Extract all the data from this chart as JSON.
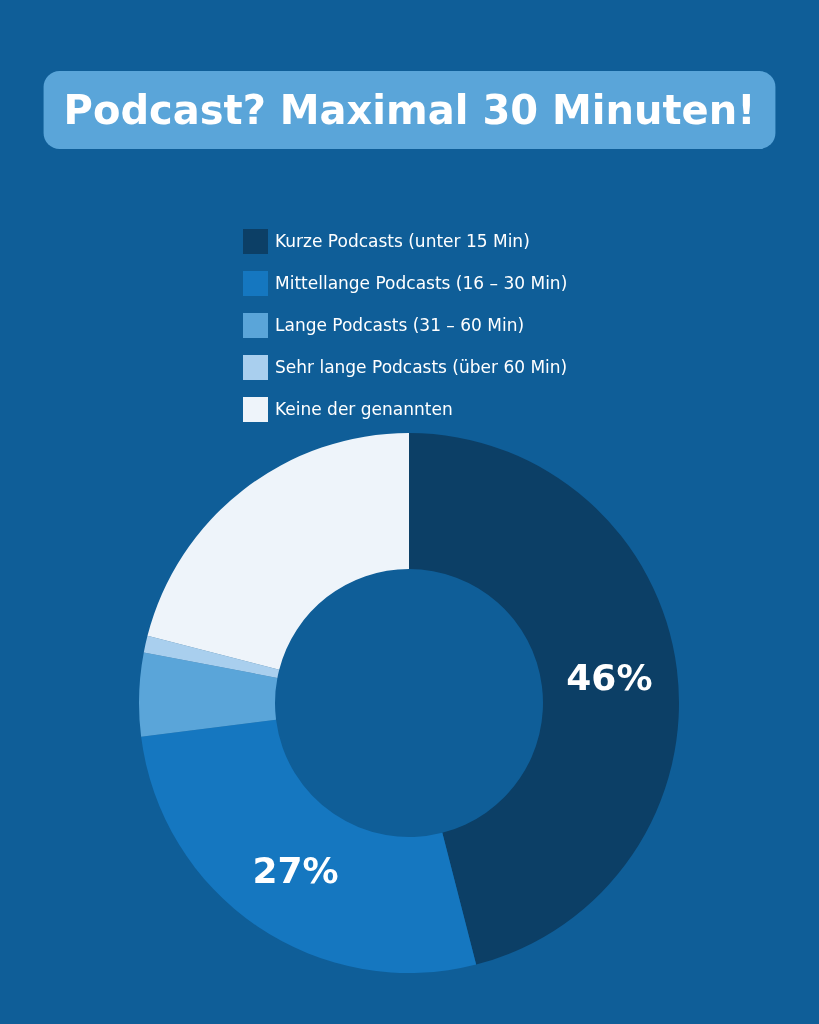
{
  "chart_data": {
    "type": "donut",
    "title": "Podcast? Maximal 30 Minuten!",
    "categories": [
      "Kurze Podcasts (unter 15 Min)",
      "Mittellange Podcasts (16 – 30 Min)",
      "Lange Podcasts (31 – 60 Min)",
      "Sehr lange Podcasts (über 60 Min)",
      "Keine der genannten"
    ],
    "values": [
      46,
      27,
      5,
      1,
      21
    ],
    "colors": [
      "#0c3f66",
      "#1577c0",
      "#5aa5d9",
      "#a9cfee",
      "#eef4fa"
    ],
    "value_labels": [
      "46%",
      "27%",
      null,
      null,
      null
    ],
    "legend": "top"
  }
}
